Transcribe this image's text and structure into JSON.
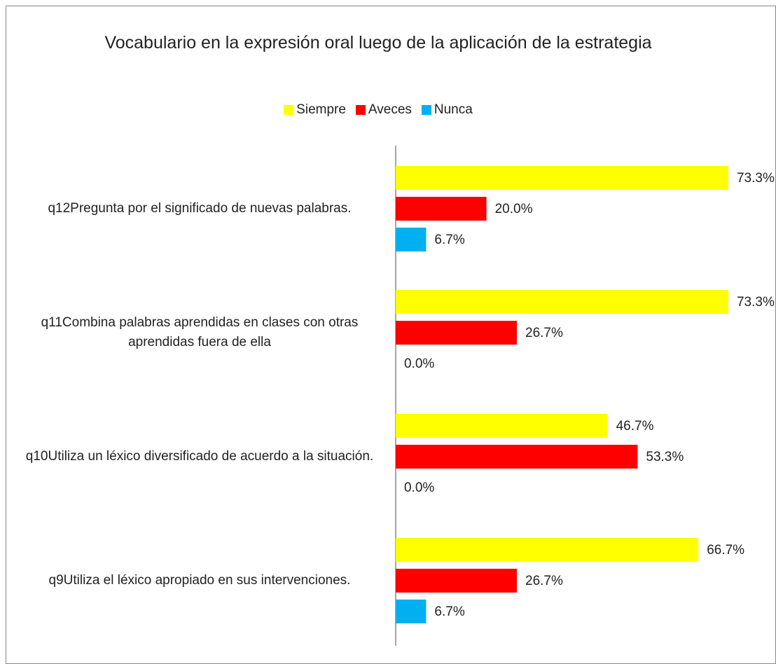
{
  "chart_data": {
    "type": "bar",
    "orientation": "horizontal",
    "title": "Vocabulario en la expresión oral luego de la aplicación de la estrategia",
    "categories": [
      "q12Pregunta por el significado de nuevas palabras.",
      "q11Combina palabras aprendidas en clases con otras aprendidas fuera de ella",
      "q10Utiliza un léxico diversificado de acuerdo a la situación.",
      "q9Utiliza el léxico apropiado en sus intervenciones."
    ],
    "series": [
      {
        "name": "Siempre",
        "color": "#ffff00",
        "values": [
          73.3,
          73.3,
          46.7,
          66.7
        ],
        "value_labels": [
          "73.3%",
          "73.3%",
          "46.7%",
          "66.7%"
        ]
      },
      {
        "name": "Aveces",
        "color": "#ff0000",
        "values": [
          20.0,
          26.7,
          53.3,
          26.7
        ],
        "value_labels": [
          "20.0%",
          "26.7%",
          "53.3%",
          "26.7%"
        ]
      },
      {
        "name": "Nunca",
        "color": "#00b0f0",
        "values": [
          6.7,
          0.0,
          0.0,
          6.7
        ],
        "value_labels": [
          "6.7%",
          "0.0%",
          "0.0%",
          "6.7%"
        ]
      }
    ],
    "legend": "top"
  }
}
